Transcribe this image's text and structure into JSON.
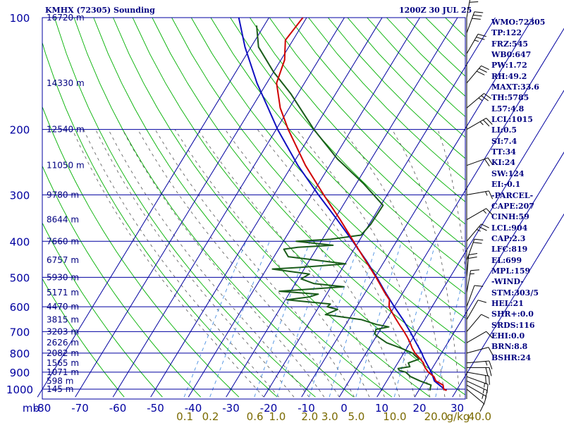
{
  "header": {
    "station": "KMHX (72305) Sounding",
    "valid_time": "1200Z 30 JUL 25"
  },
  "indices": [
    "WMO:72305",
    "TP:122",
    "FRZ:545",
    "WB0:647",
    "PW:1.72",
    "RH:49.2",
    "MAXT:33.6",
    "TH:5785",
    "L57:4.8",
    "LCL:1015",
    "LI:0.5",
    "SI:7.4",
    "TT:34",
    "KI:24",
    "SW:124",
    "EI:-0.1",
    "-PARCEL-",
    "CAPE:207",
    "CINH:59",
    "LCL:904",
    "CAP:2.3",
    "LFC:819",
    "EL:699",
    "MPL:159",
    "-WIND-",
    "STM:303/5",
    "HEL:21",
    "SHR+:0.0",
    "SRDS:116",
    "EHI:0.0",
    "BRN:8.8",
    "BSHR:24"
  ],
  "colors": {
    "grid": "#0000a0",
    "dry_adiabat": "#00b000",
    "moist_adiabat": "#555555",
    "mixing_ratio": "#4a90e2",
    "temperature": "#d00000",
    "dewpoint": "#1a5c1a",
    "parcel": "#1010c0",
    "text": "#000080",
    "mixing_text": "#7a6a00"
  },
  "chart_data": {
    "type": "line",
    "chart_kind": "skew-T log-P sounding",
    "pressure_levels": [
      100,
      200,
      300,
      400,
      500,
      600,
      700,
      800,
      900,
      1000
    ],
    "pressure_axis_unit": "mb",
    "temperature_ticks": [
      -80,
      -70,
      -60,
      -50,
      -40,
      -30,
      -20,
      -10,
      0,
      10,
      20,
      30
    ],
    "temperature_tick_labels": [
      "-80",
      "-70",
      "-60",
      "-50",
      "-40",
      "-30",
      "-20",
      "-10",
      "0",
      "10",
      "20",
      "30"
    ],
    "temperature_range": [
      -80,
      30
    ],
    "pressure_range": [
      100,
      1050
    ],
    "y_scale": "log",
    "height_labels": [
      {
        "p": 100,
        "label": "16720 m"
      },
      {
        "p": 150,
        "label": "14330 m"
      },
      {
        "p": 200,
        "label": "12540 m"
      },
      {
        "p": 250,
        "label": "11050 m"
      },
      {
        "p": 300,
        "label": "9780 m"
      },
      {
        "p": 350,
        "label": "8644 m"
      },
      {
        "p": 400,
        "label": "7660 m"
      },
      {
        "p": 450,
        "label": "6757 m"
      },
      {
        "p": 500,
        "label": "5930 m"
      },
      {
        "p": 550,
        "label": "5171 m"
      },
      {
        "p": 600,
        "label": "4470 m"
      },
      {
        "p": 650,
        "label": "3815 m"
      },
      {
        "p": 700,
        "label": "3203 m"
      },
      {
        "p": 750,
        "label": "2626 m"
      },
      {
        "p": 800,
        "label": "2082 m"
      },
      {
        "p": 850,
        "label": "1565 m"
      },
      {
        "p": 900,
        "label": "1071 m"
      },
      {
        "p": 950,
        "label": "598 m"
      },
      {
        "p": 1000,
        "label": "145 m"
      }
    ],
    "mixing_ratio_labels": [
      "0.1",
      "0.2",
      "0.6",
      "1.0",
      "2.0",
      "3.0",
      "5.0",
      "10.0",
      "20.0",
      "40.0"
    ],
    "mixing_ratio_values": [
      0.1,
      0.2,
      0.6,
      1.0,
      2.0,
      3.0,
      5.0,
      10.0,
      20.0,
      40.0
    ],
    "mixing_ratio_unit": "g/kg",
    "series": [
      {
        "key": "temperature",
        "values": [
          [
            1008,
            27.4
          ],
          [
            1000,
            26.4
          ],
          [
            975,
            25.6
          ],
          [
            950,
            23.0
          ],
          [
            925,
            21.8
          ],
          [
            900,
            19.6
          ],
          [
            875,
            18.0
          ],
          [
            850,
            16.8
          ],
          [
            825,
            15.0
          ],
          [
            800,
            13.0
          ],
          [
            775,
            11.4
          ],
          [
            750,
            10.0
          ],
          [
            725,
            8.4
          ],
          [
            700,
            6.6
          ],
          [
            675,
            4.6
          ],
          [
            650,
            2.6
          ],
          [
            625,
            0.6
          ],
          [
            600,
            -1.4
          ],
          [
            575,
            -2.4
          ],
          [
            550,
            -4.8
          ],
          [
            500,
            -9.6
          ],
          [
            450,
            -15.2
          ],
          [
            400,
            -21.4
          ],
          [
            350,
            -28.4
          ],
          [
            300,
            -36.8
          ],
          [
            250,
            -46.4
          ],
          [
            200,
            -56.8
          ],
          [
            175,
            -62.4
          ],
          [
            150,
            -67.4
          ],
          [
            130,
            -69.0
          ],
          [
            115,
            -72.0
          ],
          [
            100,
            -71.0
          ]
        ]
      },
      {
        "key": "dewpoint",
        "values": [
          [
            1008,
            23.0
          ],
          [
            1000,
            22.8
          ],
          [
            975,
            22.4
          ],
          [
            950,
            18.8
          ],
          [
            925,
            15.6
          ],
          [
            900,
            13.6
          ],
          [
            890,
            11.6
          ],
          [
            880,
            11.0
          ],
          [
            870,
            13.8
          ],
          [
            850,
            12.8
          ],
          [
            830,
            15.0
          ],
          [
            810,
            13.2
          ],
          [
            800,
            12.4
          ],
          [
            775,
            8.4
          ],
          [
            750,
            3.8
          ],
          [
            725,
            0.8
          ],
          [
            710,
            -0.8
          ],
          [
            690,
            -1.2
          ],
          [
            680,
            1.8
          ],
          [
            670,
            -1.8
          ],
          [
            650,
            -6.6
          ],
          [
            630,
            -17.0
          ],
          [
            610,
            -14.6
          ],
          [
            600,
            -17.8
          ],
          [
            590,
            -17.4
          ],
          [
            575,
            -29.6
          ],
          [
            565,
            -24.2
          ],
          [
            555,
            -22.2
          ],
          [
            545,
            -33.0
          ],
          [
            530,
            -16.6
          ],
          [
            520,
            -25.0
          ],
          [
            505,
            -29.2
          ],
          [
            490,
            -27.8
          ],
          [
            475,
            -38.4
          ],
          [
            470,
            -31.2
          ],
          [
            460,
            -19.8
          ],
          [
            440,
            -36.2
          ],
          [
            420,
            -38.6
          ],
          [
            415,
            -35.2
          ],
          [
            410,
            -26.2
          ],
          [
            400,
            -36.6
          ],
          [
            395,
            -27.8
          ],
          [
            385,
            -20.4
          ],
          [
            360,
            -19.6
          ],
          [
            320,
            -19.4
          ],
          [
            280,
            -28.0
          ],
          [
            240,
            -39.0
          ],
          [
            200,
            -50.0
          ],
          [
            160,
            -62.0
          ],
          [
            140,
            -70.0
          ],
          [
            120,
            -78.0
          ],
          [
            105,
            -82.0
          ]
        ]
      },
      {
        "key": "parcel",
        "values": [
          [
            1008,
            27.4
          ],
          [
            1000,
            26.6
          ],
          [
            950,
            22.6
          ],
          [
            904,
            20.6
          ],
          [
            850,
            17.6
          ],
          [
            819,
            15.8
          ],
          [
            800,
            14.8
          ],
          [
            750,
            11.6
          ],
          [
            700,
            8.2
          ],
          [
            650,
            4.4
          ],
          [
            600,
            0.0
          ],
          [
            550,
            -4.6
          ],
          [
            500,
            -9.4
          ],
          [
            450,
            -15.0
          ],
          [
            400,
            -21.6
          ],
          [
            350,
            -29.2
          ],
          [
            300,
            -38.2
          ],
          [
            250,
            -48.4
          ],
          [
            200,
            -59.6
          ],
          [
            150,
            -72.6
          ],
          [
            120,
            -81.6
          ],
          [
            100,
            -88.0
          ]
        ]
      }
    ],
    "wind_barbs": [
      {
        "p": 1000,
        "dir": 230,
        "kt": 10
      },
      {
        "p": 975,
        "dir": 240,
        "kt": 15
      },
      {
        "p": 950,
        "dir": 245,
        "kt": 15
      },
      {
        "p": 925,
        "dir": 250,
        "kt": 15
      },
      {
        "p": 900,
        "dir": 260,
        "kt": 20
      },
      {
        "p": 875,
        "dir": 270,
        "kt": 20
      },
      {
        "p": 850,
        "dir": 275,
        "kt": 15
      },
      {
        "p": 800,
        "dir": 285,
        "kt": 10
      },
      {
        "p": 750,
        "dir": 300,
        "kt": 10
      },
      {
        "p": 700,
        "dir": 320,
        "kt": 10
      },
      {
        "p": 650,
        "dir": 330,
        "kt": 10
      },
      {
        "p": 600,
        "dir": 340,
        "kt": 10
      },
      {
        "p": 550,
        "dir": 350,
        "kt": 15
      },
      {
        "p": 500,
        "dir": 355,
        "kt": 20
      },
      {
        "p": 450,
        "dir": 340,
        "kt": 20
      },
      {
        "p": 400,
        "dir": 320,
        "kt": 25
      },
      {
        "p": 350,
        "dir": 300,
        "kt": 15
      },
      {
        "p": 300,
        "dir": 280,
        "kt": 15
      },
      {
        "p": 250,
        "dir": 290,
        "kt": 20
      },
      {
        "p": 200,
        "dir": 300,
        "kt": 25
      },
      {
        "p": 175,
        "dir": 310,
        "kt": 25
      },
      {
        "p": 150,
        "dir": 320,
        "kt": 30
      },
      {
        "p": 125,
        "dir": 330,
        "kt": 25
      },
      {
        "p": 110,
        "dir": 340,
        "kt": 30
      },
      {
        "p": 100,
        "dir": 350,
        "kt": 30
      }
    ]
  }
}
